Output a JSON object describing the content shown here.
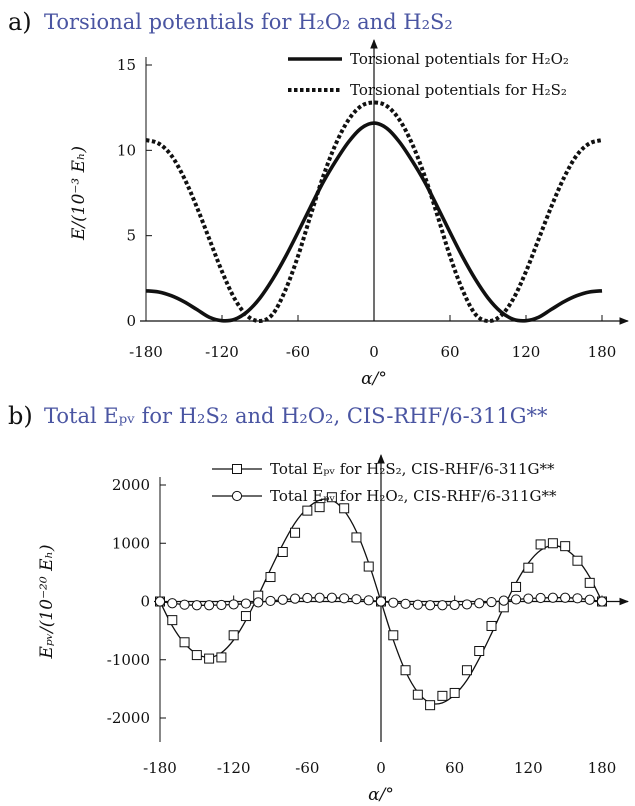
{
  "chart_data": [
    {
      "type": "line",
      "panel": "a)",
      "title": "Torsional potentials for H₂O₂ and H₂S₂",
      "xlabel": "α/°",
      "ylabel": "E/(10⁻³ Eₕ)",
      "xlim": [
        -180,
        180
      ],
      "ylim": [
        0,
        16
      ],
      "xticks": [
        -180,
        -120,
        -60,
        0,
        60,
        120,
        180
      ],
      "xtick_labels": [
        "-180",
        "-120",
        "-60",
        "0",
        "60",
        "120",
        "180"
      ],
      "yticks": [
        0,
        5,
        10,
        15
      ],
      "ytick_labels": [
        "0",
        "5",
        "10",
        "15"
      ],
      "grid": false,
      "legend": "top-right",
      "x": [
        -180,
        -170,
        -160,
        -150,
        -140,
        -130,
        -120,
        -110,
        -100,
        -90,
        -80,
        -70,
        -60,
        -50,
        -40,
        -30,
        -20,
        -10,
        0,
        10,
        20,
        30,
        40,
        50,
        60,
        70,
        80,
        90,
        100,
        110,
        120,
        130,
        140,
        150,
        160,
        170,
        180
      ],
      "series": [
        {
          "name": "Torsional potentials for H₂O₂",
          "style": "solid",
          "values": [
            1.77,
            1.7,
            1.48,
            1.13,
            0.68,
            0.22,
            0.02,
            0.1,
            0.55,
            1.35,
            2.45,
            3.75,
            5.2,
            6.7,
            8.15,
            9.4,
            10.5,
            11.3,
            11.6,
            11.3,
            10.5,
            9.4,
            8.15,
            6.7,
            5.2,
            3.75,
            2.45,
            1.35,
            0.55,
            0.1,
            0.02,
            0.22,
            0.68,
            1.13,
            1.48,
            1.7,
            1.77
          ]
        },
        {
          "name": "Torsional potentials for H₂S₂",
          "style": "dotted",
          "values": [
            10.6,
            10.4,
            9.7,
            8.4,
            6.7,
            4.8,
            2.9,
            1.3,
            0.3,
            0.0,
            0.4,
            1.8,
            3.8,
            6.2,
            8.5,
            10.4,
            11.8,
            12.6,
            12.8,
            12.6,
            11.8,
            10.4,
            8.5,
            6.2,
            3.8,
            1.8,
            0.4,
            0.0,
            0.3,
            1.3,
            2.9,
            4.8,
            6.7,
            8.4,
            9.7,
            10.4,
            10.6
          ]
        }
      ]
    },
    {
      "type": "line",
      "panel": "b)",
      "title": "Total Eₚᵥ for H₂S₂ and H₂O₂, CIS-RHF/6-311G**",
      "xlabel": "α/°",
      "ylabel": "Eₚᵥ/(10⁻²⁰ Eₕ)",
      "xlim": [
        -180,
        180
      ],
      "ylim": [
        -2000,
        2300
      ],
      "xticks": [
        -180,
        -120,
        -60,
        0,
        60,
        120,
        180
      ],
      "xtick_labels": [
        "-180",
        "-120",
        "-60",
        "0",
        "60",
        "120",
        "180"
      ],
      "yticks": [
        -2000,
        -1000,
        0,
        1000,
        2000
      ],
      "ytick_labels": [
        "-2000",
        "-1000",
        "0",
        "1000",
        "2000"
      ],
      "grid": false,
      "legend": "top-right",
      "x": [
        -180,
        -170,
        -160,
        -150,
        -140,
        -130,
        -120,
        -110,
        -100,
        -90,
        -80,
        -70,
        -60,
        -50,
        -40,
        -30,
        -20,
        -10,
        0,
        10,
        20,
        30,
        40,
        50,
        60,
        70,
        80,
        90,
        100,
        110,
        120,
        130,
        140,
        150,
        160,
        170,
        180
      ],
      "series": [
        {
          "name": "Total Eₚᵥ for H₂S₂, CIS-RHF/6-311G**",
          "marker": "square",
          "values": [
            0,
            -320,
            -700,
            -920,
            -980,
            -960,
            -580,
            -250,
            100,
            420,
            850,
            1180,
            1560,
            1620,
            1790,
            1600,
            1100,
            600,
            0,
            -580,
            -1180,
            -1600,
            -1780,
            -1620,
            -1570,
            -1180,
            -850,
            -420,
            -100,
            250,
            580,
            980,
            1000,
            950,
            700,
            320,
            0
          ],
          "curve": [
            0,
            -420,
            -720,
            -900,
            -960,
            -880,
            -660,
            -320,
            100,
            550,
            980,
            1350,
            1600,
            1740,
            1740,
            1560,
            1200,
            660,
            0,
            -660,
            -1200,
            -1560,
            -1740,
            -1740,
            -1600,
            -1350,
            -980,
            -550,
            -100,
            320,
            660,
            880,
            960,
            900,
            720,
            420,
            0
          ]
        },
        {
          "name": "Total Eₚᵥ for H₂O₂, CIS-RHF/6-311G**",
          "marker": "circle",
          "values": [
            0,
            -30,
            -55,
            -65,
            -65,
            -60,
            -50,
            -35,
            -15,
            10,
            30,
            50,
            60,
            65,
            65,
            55,
            40,
            20,
            0,
            -20,
            -40,
            -55,
            -65,
            -65,
            -60,
            -50,
            -30,
            -10,
            15,
            35,
            50,
            60,
            65,
            65,
            55,
            30,
            0
          ]
        }
      ]
    }
  ]
}
